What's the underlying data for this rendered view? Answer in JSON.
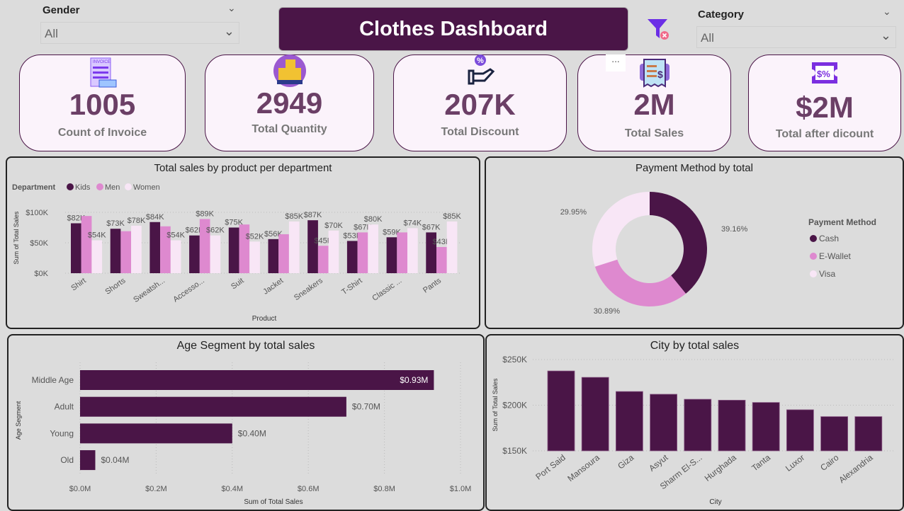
{
  "title": "Clothes Dashboard",
  "slicers": {
    "gender": {
      "label": "Gender",
      "value": "All"
    },
    "category": {
      "label": "Category",
      "value": "All"
    }
  },
  "icons": {
    "clear_filter": "filter-clear-icon",
    "more_options": "more-options-icon"
  },
  "more_options_label": "...",
  "kpis": [
    {
      "value": "1005",
      "label": "Count of Invoice",
      "icon": "invoice-icon"
    },
    {
      "value": "2949",
      "label": "Total Quantity",
      "icon": "boxes-icon"
    },
    {
      "value": "207K",
      "label": "Total Discount",
      "icon": "discount-hand-icon"
    },
    {
      "value": "2M",
      "label": "Total Sales",
      "icon": "receipt-icon"
    },
    {
      "value": "$2M",
      "label": "Total after dicount",
      "icon": "coupon-icon"
    }
  ],
  "colors": {
    "brand": "#4a1547",
    "kids": "#4a1547",
    "men": "#de89cf",
    "women": "#f8e6f6"
  },
  "chart_data": [
    {
      "type": "bar",
      "title": "Total sales by product per department",
      "legend_title": "Department",
      "legend_position": "top-left",
      "xlabel": "Product",
      "ylabel": "Sum of Total Sales",
      "ylim": [
        0,
        100000
      ],
      "yticks": [
        "$0K",
        "$50K",
        "$100K"
      ],
      "categories": [
        "Shirt",
        "Shorts",
        "Sweatsh...",
        "Accesso...",
        "Suit",
        "Jacket",
        "Sneakers",
        "T-Shirt",
        "Classic ...",
        "Pants"
      ],
      "series": [
        {
          "name": "Kids",
          "values": [
            82000,
            73000,
            84000,
            62000,
            75000,
            56000,
            87000,
            53000,
            59000,
            67000
          ],
          "labels": [
            "$82K",
            "$73K",
            "$84K",
            "$62K",
            "$75K",
            "$56K",
            "$87K",
            "$53K",
            "$59K",
            "$67K"
          ]
        },
        {
          "name": "Men",
          "values": [
            94000,
            69000,
            77000,
            89000,
            80000,
            64000,
            45000,
            67000,
            67000,
            43000
          ],
          "labels": [
            null,
            null,
            null,
            "$89K",
            null,
            null,
            "$45K",
            "$67K",
            null,
            "$43K"
          ]
        },
        {
          "name": "Women",
          "values": [
            54000,
            78000,
            54000,
            62000,
            52000,
            85000,
            70000,
            80000,
            74000,
            85000
          ],
          "labels": [
            "$54K",
            "$78K",
            "$54K",
            "$62K",
            "$52K",
            "$85K",
            "$70K",
            "$80K",
            "$74K",
            "$85K"
          ]
        }
      ]
    },
    {
      "type": "pie",
      "title": "Payment Method by total",
      "legend_title": "Payment Method",
      "legend_position": "right",
      "slices": [
        {
          "name": "Cash",
          "value": 39.16,
          "label": "39.16%",
          "color": "#4a1547"
        },
        {
          "name": "E-Wallet",
          "value": 30.89,
          "label": "30.89%",
          "color": "#de89cf"
        },
        {
          "name": "Visa",
          "value": 29.95,
          "label": "29.95%",
          "color": "#f8e6f6"
        }
      ]
    },
    {
      "type": "bar",
      "orientation": "horizontal",
      "title": "Age Segment by total sales",
      "xlabel": "Sum of Total Sales",
      "ylabel": "Age Segment",
      "xlim": [
        0,
        1.0
      ],
      "xticks": [
        "$0.0M",
        "$0.2M",
        "$0.4M",
        "$0.6M",
        "$0.8M",
        "$1.0M"
      ],
      "categories": [
        "Middle Age",
        "Adult",
        "Young",
        "Old"
      ],
      "values": [
        0.93,
        0.7,
        0.4,
        0.04
      ],
      "labels": [
        "$0.93M",
        "$0.70M",
        "$0.40M",
        "$0.04M"
      ]
    },
    {
      "type": "bar",
      "title": "City by total sales",
      "xlabel": "City",
      "ylabel": "Sum of Total Sales",
      "ylim": [
        150000,
        250000
      ],
      "yticks": [
        "$150K",
        "$200K",
        "$250K"
      ],
      "categories": [
        "Port Said",
        "Mansoura",
        "Giza",
        "Asyut",
        "Sharm El-S...",
        "Hurghada",
        "Tanta",
        "Luxor",
        "Cairo",
        "Alexandria"
      ],
      "values": [
        237500,
        230500,
        215000,
        212000,
        206500,
        205500,
        203000,
        195000,
        187500,
        187500
      ]
    }
  ]
}
